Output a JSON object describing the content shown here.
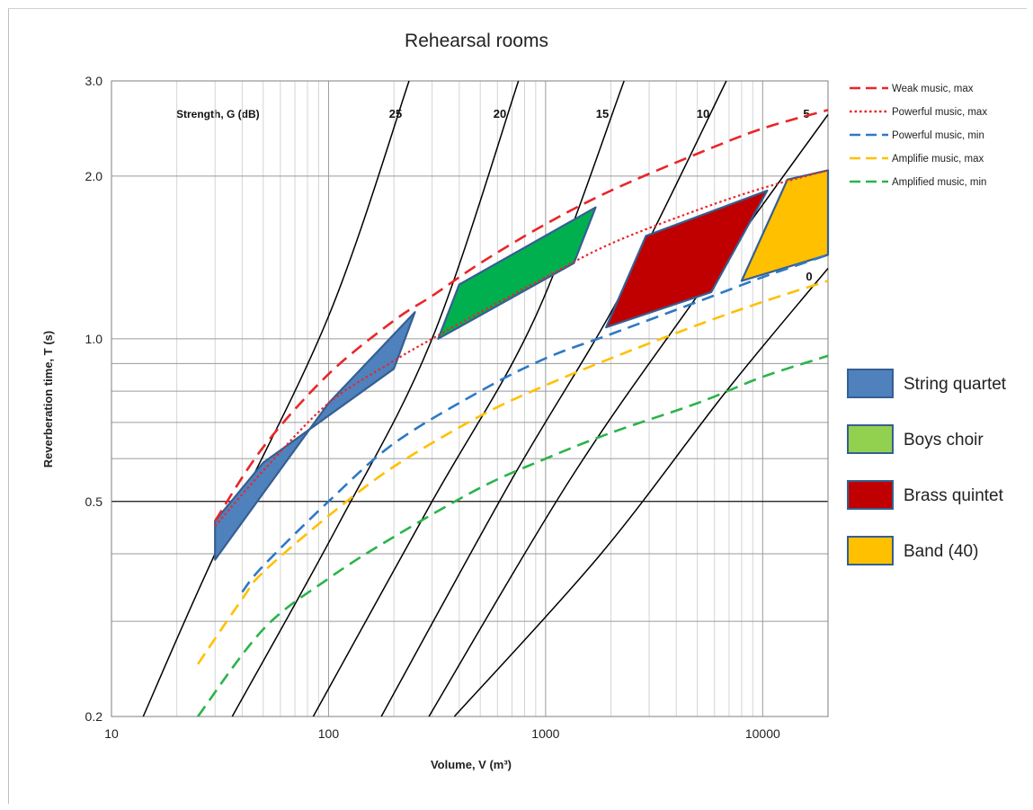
{
  "chart_data": {
    "type": "line",
    "title": "Rehearsal rooms",
    "xlabel": "Volume, V (m³)",
    "ylabel": "Reverberation time, T (s)",
    "x_scale": "log",
    "y_scale": "log",
    "xlim": [
      10,
      20000
    ],
    "ylim": [
      0.2,
      3.0
    ],
    "x_ticks": [
      10,
      100,
      1000,
      10000
    ],
    "x_tick_labels": [
      "10",
      "100",
      "1000",
      "10000"
    ],
    "y_ticks": [
      0.2,
      0.5,
      1.0,
      2.0,
      3.0
    ],
    "y_tick_labels": [
      "0.2",
      "0.5",
      "1.0",
      "2.0",
      "3.0"
    ],
    "y_minor_gridlines": [
      0.3,
      0.4,
      0.6,
      0.7,
      0.8,
      0.9
    ],
    "grid": true,
    "strength_title": "Strength, G (dB)",
    "strength_lines": [
      {
        "label": "25",
        "points": [
          [
            14,
            0.2
          ],
          [
            30,
            0.4
          ],
          [
            100,
            1.1
          ],
          [
            235,
            3.0
          ]
        ]
      },
      {
        "label": "20",
        "points": [
          [
            36,
            0.2
          ],
          [
            110,
            0.45
          ],
          [
            300,
            1.0
          ],
          [
            750,
            3.0
          ]
        ]
      },
      {
        "label": "15",
        "points": [
          [
            85,
            0.2
          ],
          [
            300,
            0.5
          ],
          [
            900,
            1.1
          ],
          [
            2300,
            3.0
          ]
        ]
      },
      {
        "label": "10",
        "points": [
          [
            175,
            0.2
          ],
          [
            700,
            0.55
          ],
          [
            2200,
            1.2
          ],
          [
            6800,
            3.0
          ]
        ]
      },
      {
        "label": "5",
        "points": [
          [
            290,
            0.2
          ],
          [
            1300,
            0.55
          ],
          [
            5000,
            1.2
          ],
          [
            20000,
            2.6
          ]
        ]
      },
      {
        "label": "0",
        "points": [
          [
            380,
            0.2
          ],
          [
            1800,
            0.4
          ],
          [
            6800,
            0.8
          ],
          [
            20000,
            1.35
          ]
        ]
      }
    ],
    "series": [
      {
        "name": "Weak music, max",
        "color": "#e8262a",
        "style": "long-dash",
        "x": [
          30,
          50,
          100,
          200,
          300,
          500,
          1000,
          2000,
          5000,
          10000,
          20000
        ],
        "y": [
          0.46,
          0.63,
          0.86,
          1.08,
          1.2,
          1.38,
          1.63,
          1.88,
          2.2,
          2.45,
          2.65
        ]
      },
      {
        "name": "Powerful music, max",
        "color": "#e8262a",
        "style": "dotted",
        "x": [
          30,
          50,
          100,
          200,
          300,
          500,
          1000,
          2000,
          5000,
          10000,
          20000
        ],
        "y": [
          0.45,
          0.57,
          0.76,
          0.91,
          1.0,
          1.12,
          1.3,
          1.5,
          1.73,
          1.9,
          2.05
        ]
      },
      {
        "name": "Powerful music, min",
        "color": "#2e79c4",
        "style": "long-dash",
        "x": [
          40,
          50,
          100,
          200,
          500,
          1000,
          2000,
          5000,
          10000,
          20000
        ],
        "y": [
          0.34,
          0.38,
          0.5,
          0.64,
          0.8,
          0.92,
          1.02,
          1.17,
          1.3,
          1.43
        ]
      },
      {
        "name": "Amplifie music, max",
        "color": "#ffc000",
        "style": "long-dash",
        "x": [
          25,
          40,
          50,
          100,
          200,
          500,
          1000,
          2000,
          5000,
          10000,
          20000
        ],
        "y": [
          0.25,
          0.33,
          0.37,
          0.47,
          0.58,
          0.72,
          0.82,
          0.92,
          1.06,
          1.17,
          1.28
        ]
      },
      {
        "name": "Amplified music, min",
        "color": "#2bb34b",
        "style": "long-dash",
        "x": [
          25,
          50,
          100,
          200,
          500,
          1000,
          2000,
          5000,
          10000,
          20000
        ],
        "y": [
          0.2,
          0.29,
          0.36,
          0.43,
          0.53,
          0.6,
          0.67,
          0.76,
          0.85,
          0.93
        ]
      }
    ],
    "regions": [
      {
        "name": "String quartet",
        "fill": "#4f81bd",
        "stroke": "#355f91",
        "x": [
          30,
          30,
          100,
          250,
          200,
          50
        ],
        "y": [
          0.46,
          0.39,
          0.76,
          1.12,
          0.88,
          0.59
        ]
      },
      {
        "name": "Boys choir",
        "fill": "#00b04f",
        "stroke": "#355f91",
        "x": [
          320,
          400,
          1700,
          1350
        ],
        "y": [
          1.0,
          1.26,
          1.75,
          1.38
        ]
      },
      {
        "name": "Brass quintet",
        "fill": "#c00000",
        "stroke": "#355f91",
        "x": [
          1900,
          2900,
          10500,
          5800
        ],
        "y": [
          1.05,
          1.55,
          1.88,
          1.22
        ]
      },
      {
        "name": "Band (40)",
        "fill": "#ffc000",
        "stroke": "#355f91",
        "x": [
          8000,
          13000,
          20000,
          20000
        ],
        "y": [
          1.28,
          1.97,
          2.05,
          1.43
        ]
      }
    ],
    "legend_placement": "right",
    "area_legend": [
      {
        "label": "String quartet",
        "color": "#4f81bd",
        "swatch_fill": "#4f81bd"
      },
      {
        "label": "Boys choir",
        "color": "#00b04f",
        "swatch_fill": "#92d050"
      },
      {
        "label": "Brass quintet",
        "color": "#c00000",
        "swatch_fill": "#c00000"
      },
      {
        "label": "Band (40)",
        "color": "#ffc000",
        "swatch_fill": "#ffc000"
      }
    ]
  }
}
